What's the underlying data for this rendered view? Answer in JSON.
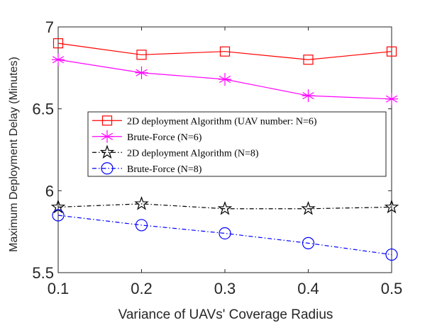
{
  "chart_data": {
    "type": "line",
    "title": "",
    "xlabel": "Variance of UAVs' Coverage Radius",
    "ylabel": "Maximum Deployment Delay (Minutes)",
    "xlim": [
      0.1,
      0.5
    ],
    "ylim": [
      5.5,
      7.0
    ],
    "x": [
      0.1,
      0.2,
      0.3,
      0.4,
      0.5
    ],
    "x_ticks": [
      "0.1",
      "0.2",
      "0.3",
      "0.4",
      "0.5"
    ],
    "y_ticks": [
      "5.5",
      "6",
      "6.5",
      "7"
    ],
    "y_tick_values": [
      5.5,
      6.0,
      6.5,
      7.0
    ],
    "grid": false,
    "legend_position": "center-right",
    "series": [
      {
        "name": "2D deployment Algorithm (UAV number: N=6)",
        "values": [
          6.9,
          6.83,
          6.85,
          6.8,
          6.85
        ],
        "color": "#ff0000",
        "marker": "square",
        "line_style": "solid"
      },
      {
        "name": "Brute-Force (N=6)",
        "values": [
          6.8,
          6.72,
          6.68,
          6.58,
          6.56
        ],
        "color": "#ff00ff",
        "marker": "asterisk",
        "line_style": "solid"
      },
      {
        "name": "2D deployment Algorithm (N=8)",
        "values": [
          5.9,
          5.92,
          5.89,
          5.89,
          5.9
        ],
        "color": "#000000",
        "marker": "star",
        "line_style": "dashdot"
      },
      {
        "name": "Brute-Force (N=8)",
        "values": [
          5.85,
          5.79,
          5.74,
          5.68,
          5.61
        ],
        "color": "#0000ff",
        "marker": "circle",
        "line_style": "dashdot"
      }
    ]
  }
}
